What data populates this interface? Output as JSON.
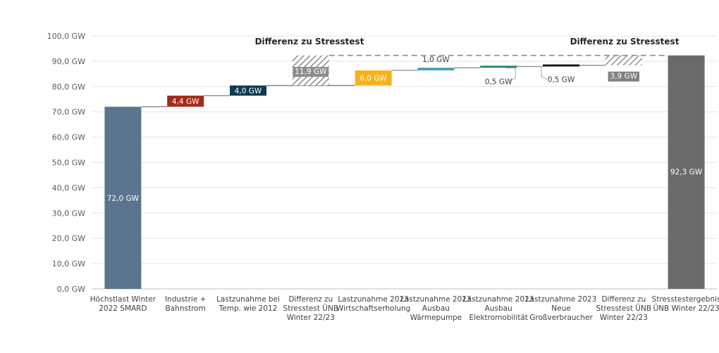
{
  "chart_data": {
    "type": "bar",
    "subtype": "waterfall",
    "title": "",
    "xlabel": "",
    "ylabel": "",
    "ylim": [
      0,
      100
    ],
    "y_ticks": [
      "0,0 GW",
      "10,0 GW",
      "20,0 GW",
      "30,0 GW",
      "40,0 GW",
      "50,0 GW",
      "60,0 GW",
      "70,0 GW",
      "80,0 GW",
      "90,0 GW",
      "100,0 GW"
    ],
    "grid": true,
    "categories": [
      [
        "Höchstlast Winter",
        "2022 SMARD"
      ],
      [
        "Industrie +",
        "Bahnstrom"
      ],
      [
        "Lastzunahme bei",
        "Temp. wie 2012"
      ],
      [
        "Differenz zu",
        "Stresstest ÜNB",
        "Winter 22/23"
      ],
      [
        "Lastzunahme 2023",
        "Wirtschaftserholung"
      ],
      [
        "Lastzunahme 2023",
        "Ausbau",
        "Wärmepumpe"
      ],
      [
        "Lastzunahme 2023",
        "Ausbau",
        "Elektromobilität"
      ],
      [
        "Lastzunahme 2023",
        "Neue",
        "Großverbraucher"
      ],
      [
        "Differenz zu",
        "Stresstest ÜNB",
        "Winter 22/23"
      ],
      [
        "Stresstestergebnis",
        "ÜNB Winter 22/23"
      ]
    ],
    "bars": [
      {
        "base": 0,
        "top": 72.0,
        "label": "72,0 GW",
        "color": "#5b7590",
        "style": "solid"
      },
      {
        "base": 72.0,
        "top": 76.4,
        "label": "4,4 GW",
        "color": "#a32a1a",
        "style": "solid"
      },
      {
        "base": 76.4,
        "top": 80.4,
        "label": "4,0 GW",
        "color": "#0d3a4f",
        "style": "solid"
      },
      {
        "base": 80.4,
        "top": 92.3,
        "label": "11,9 GW",
        "color": "#8c8c8c",
        "style": "hatched"
      },
      {
        "base": 80.4,
        "top": 86.4,
        "label": "6,0 GW",
        "color": "#f5b21b",
        "style": "solid"
      },
      {
        "base": 86.4,
        "top": 87.4,
        "label": "1,0 GW",
        "color": "#3e9fa6",
        "style": "solid"
      },
      {
        "base": 87.4,
        "top": 87.9,
        "label": "0,5 GW",
        "color": "#2e8b78",
        "style": "solid"
      },
      {
        "base": 87.9,
        "top": 88.4,
        "label": "0,5 GW",
        "color": "#1a1a1a",
        "style": "solid"
      },
      {
        "base": 88.4,
        "top": 92.3,
        "label": "3,9 GW",
        "color": "#8c8c8c",
        "style": "hatched"
      },
      {
        "base": 0,
        "top": 92.3,
        "label": "92,3 GW",
        "color": "#6a6a6a",
        "style": "solid"
      }
    ],
    "annotations": [
      "Differenz zu Stresstest",
      "Differenz zu Stresstest"
    ],
    "reference_line": {
      "value": 92.3,
      "style": "dashed"
    }
  }
}
